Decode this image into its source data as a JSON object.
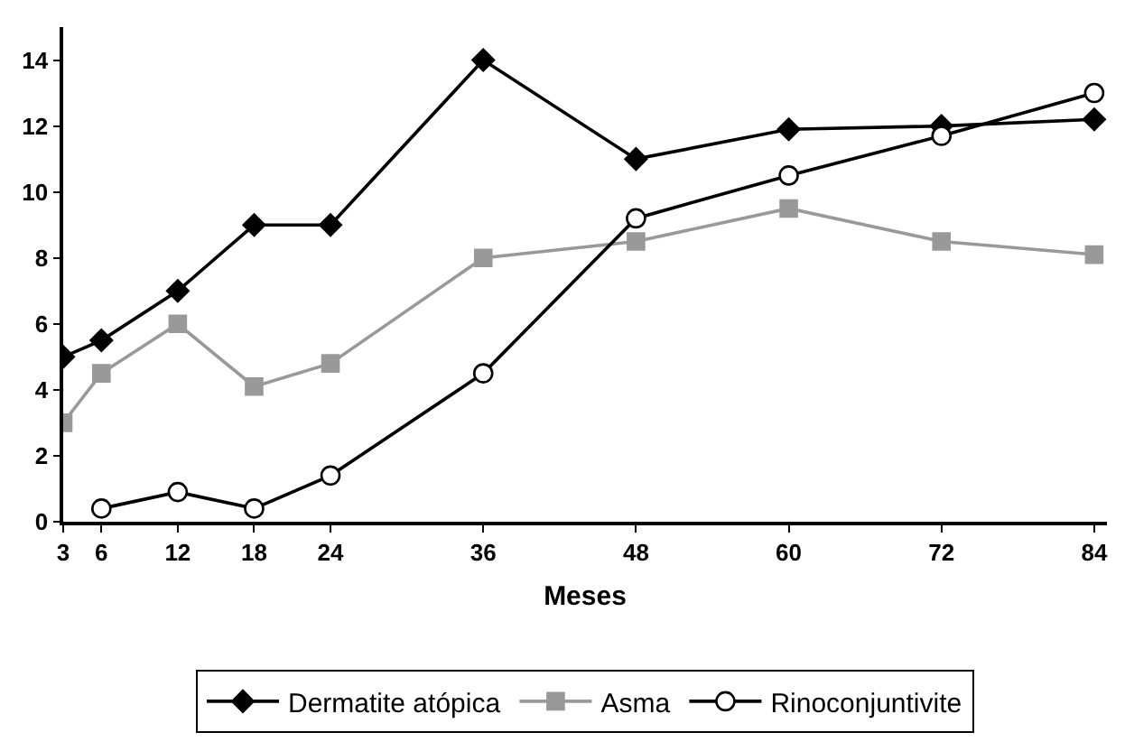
{
  "chart_data": {
    "type": "line",
    "xlabel": "Meses",
    "x": [
      3,
      6,
      12,
      18,
      24,
      36,
      48,
      60,
      72,
      84
    ],
    "series": [
      {
        "name": "Dermatite atópica",
        "color": "#000000",
        "marker": "diamond",
        "values": [
          5,
          5.5,
          7,
          9,
          9,
          14,
          11,
          11.9,
          12,
          12.2
        ]
      },
      {
        "name": "Asma",
        "color": "#999999",
        "marker": "square",
        "values": [
          3,
          4.5,
          6,
          4.1,
          4.8,
          8,
          8.5,
          9.5,
          8.5,
          8.1
        ]
      },
      {
        "name": "Rinoconjuntivite",
        "color": "#000000",
        "marker": "circle",
        "values": [
          null,
          0.4,
          0.9,
          0.4,
          1.4,
          4.5,
          9.2,
          10.5,
          11.7,
          13
        ]
      }
    ],
    "xlim": [
      3,
      85
    ],
    "xticks": [
      3,
      6,
      12,
      18,
      24,
      36,
      48,
      60,
      72,
      84
    ],
    "ylim": [
      0,
      15
    ],
    "yticks": [
      0,
      2,
      4,
      6,
      8,
      10,
      12,
      14
    ],
    "grid": false,
    "legend": "bottom",
    "line_style": "solid"
  }
}
